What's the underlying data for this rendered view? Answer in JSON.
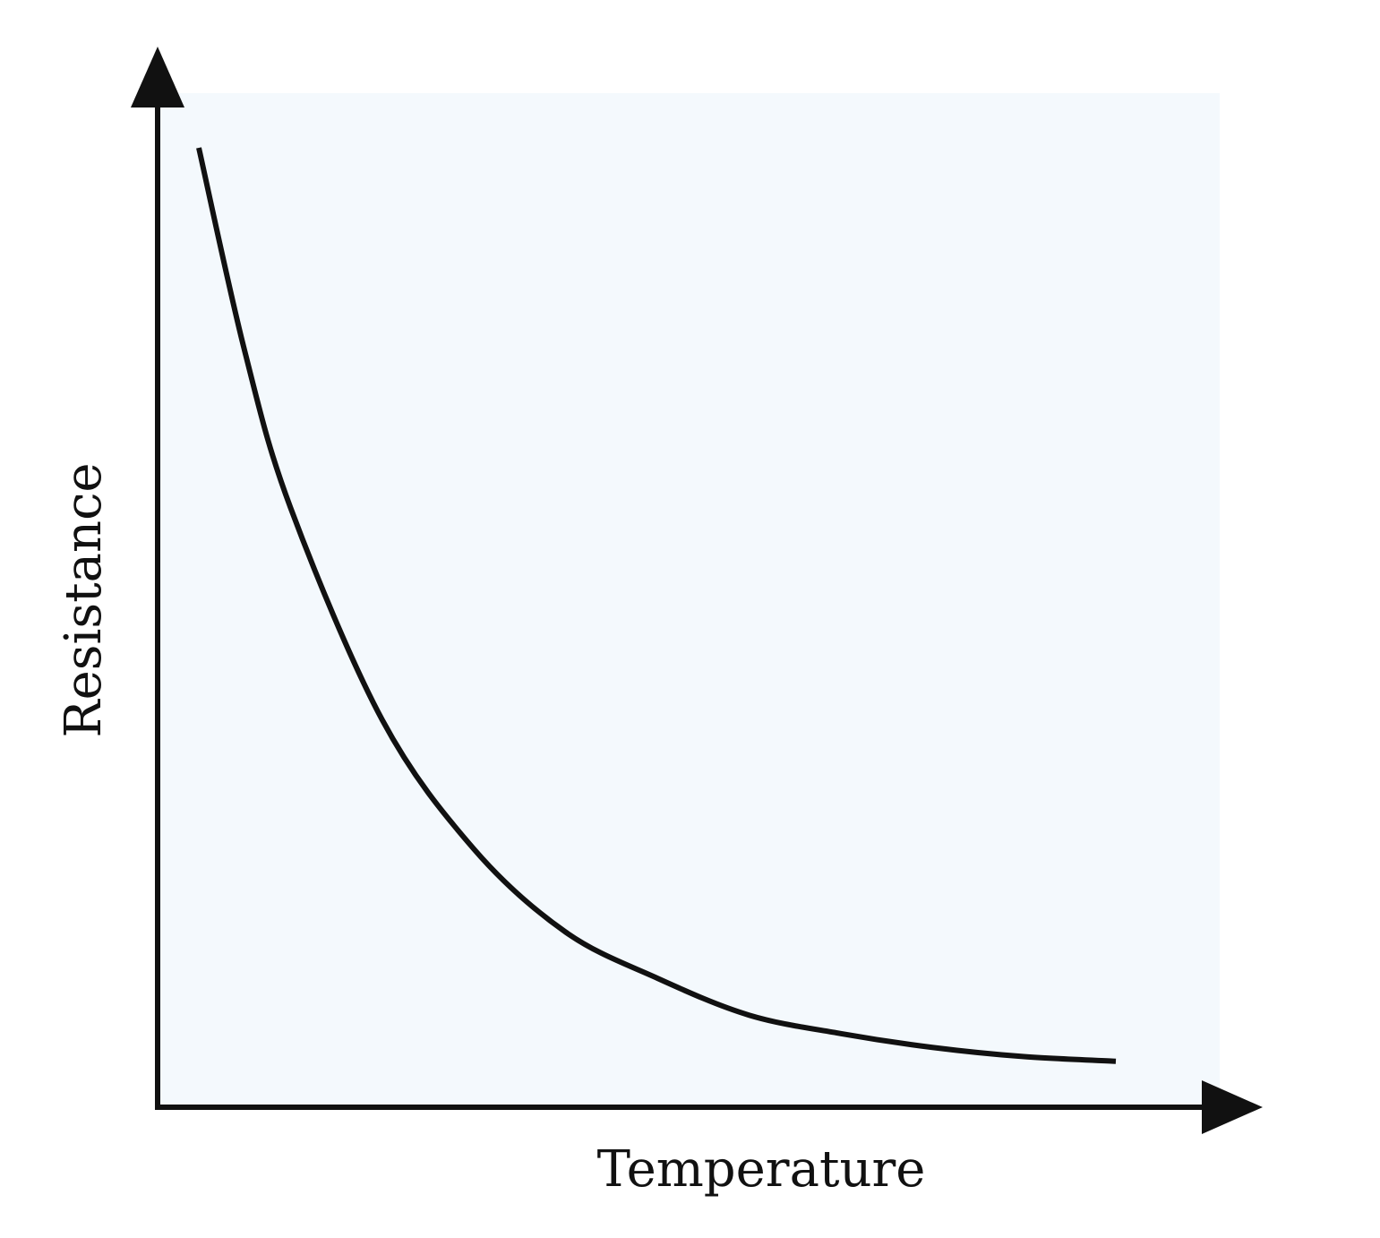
{
  "chart_data": {
    "type": "line",
    "title": "",
    "xlabel": "Temperature",
    "ylabel": "Resistance",
    "xticks": [],
    "yticks": [],
    "grid": false,
    "legend": "none",
    "series": [
      {
        "x": [
          0,
          0.5,
          1,
          2,
          3,
          4,
          5,
          6,
          7,
          8,
          9,
          10
        ],
        "y": [
          1.0,
          0.78,
          0.61,
          0.38,
          0.24,
          0.15,
          0.1,
          0.06,
          0.04,
          0.025,
          0.015,
          0.01
        ]
      }
    ],
    "xlim": [
      0,
      10
    ],
    "ylim": [
      0,
      1
    ],
    "colors": {
      "plot_background": "#f4f9fd",
      "axis": "#111111",
      "curve": "#111111"
    }
  }
}
